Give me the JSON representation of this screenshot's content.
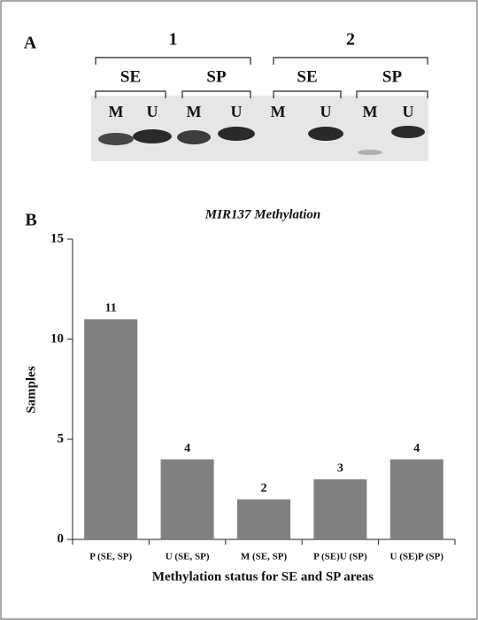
{
  "panel_a": {
    "label": "A",
    "groups": [
      {
        "label": "1",
        "lanes": [
          {
            "label": "SE",
            "bands": [
              "M",
              "U"
            ]
          },
          {
            "label": "SP",
            "bands": [
              "M",
              "U"
            ]
          }
        ]
      },
      {
        "label": "2",
        "lanes": [
          {
            "label": "SE",
            "bands": [
              "M",
              "U"
            ]
          },
          {
            "label": "SP",
            "bands": [
              "M",
              "U"
            ]
          }
        ]
      }
    ]
  },
  "chart_data": {
    "type": "bar",
    "panel_label": "B",
    "title": "MIR137 Methylation",
    "categories": [
      "P (SE, SP)",
      "U (SE, SP)",
      "M (SE, SP)",
      "P (SE)U (SP)",
      "U (SE)P (SP)"
    ],
    "values": [
      11,
      4,
      2,
      3,
      4
    ],
    "color": "#808080",
    "ylim": [
      0,
      15
    ],
    "yticks": [
      0,
      5,
      10,
      15
    ],
    "x_label": "Methylation status for SE and SP areas",
    "y_label": "Samples"
  }
}
